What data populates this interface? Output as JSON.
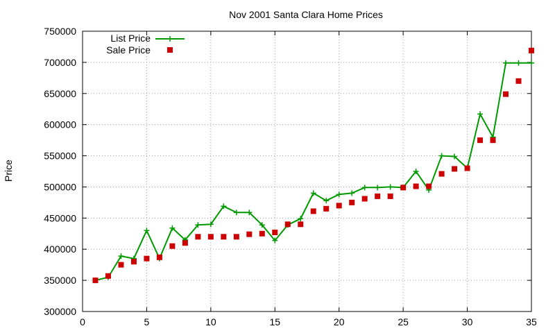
{
  "chart_data": {
    "type": "line",
    "title": "Nov 2001 Santa Clara Home Prices",
    "xlabel": "",
    "ylabel": "Price",
    "xlim": [
      0,
      35
    ],
    "ylim": [
      300000,
      750000
    ],
    "xticks": [
      "0",
      "5",
      "10",
      "15",
      "20",
      "25",
      "30",
      "35"
    ],
    "yticks": [
      "300000",
      "350000",
      "400000",
      "450000",
      "500000",
      "550000",
      "600000",
      "650000",
      "700000",
      "750000"
    ],
    "grid": true,
    "legend_position": "top-left",
    "x": [
      1,
      2,
      3,
      4,
      5,
      6,
      7,
      8,
      9,
      10,
      11,
      12,
      13,
      14,
      15,
      16,
      17,
      18,
      19,
      20,
      21,
      22,
      23,
      24,
      25,
      26,
      27,
      28,
      29,
      30,
      31,
      32,
      33,
      34,
      35
    ],
    "series": [
      {
        "name": "List Price",
        "style": "line-plus",
        "color": "#009900",
        "values": [
          350000,
          355000,
          389000,
          385000,
          430000,
          385000,
          434000,
          415000,
          439000,
          440000,
          469000,
          459000,
          459000,
          439000,
          414000,
          439000,
          449000,
          490000,
          478000,
          488000,
          490000,
          499000,
          499000,
          500000,
          499000,
          525000,
          495000,
          550000,
          549000,
          530000,
          617000,
          580000,
          699000,
          699000,
          699000
        ]
      },
      {
        "name": "Sale Price",
        "style": "square-markers",
        "color": "#cc0000",
        "values": [
          350000,
          357000,
          375000,
          380000,
          385000,
          387000,
          405000,
          410000,
          420000,
          420000,
          420000,
          420000,
          424000,
          425000,
          427000,
          440000,
          440000,
          461000,
          465000,
          470000,
          475000,
          481000,
          485000,
          485000,
          499000,
          501000,
          501000,
          521000,
          529000,
          530000,
          575000,
          575000,
          649000,
          670000,
          719000
        ]
      }
    ]
  }
}
